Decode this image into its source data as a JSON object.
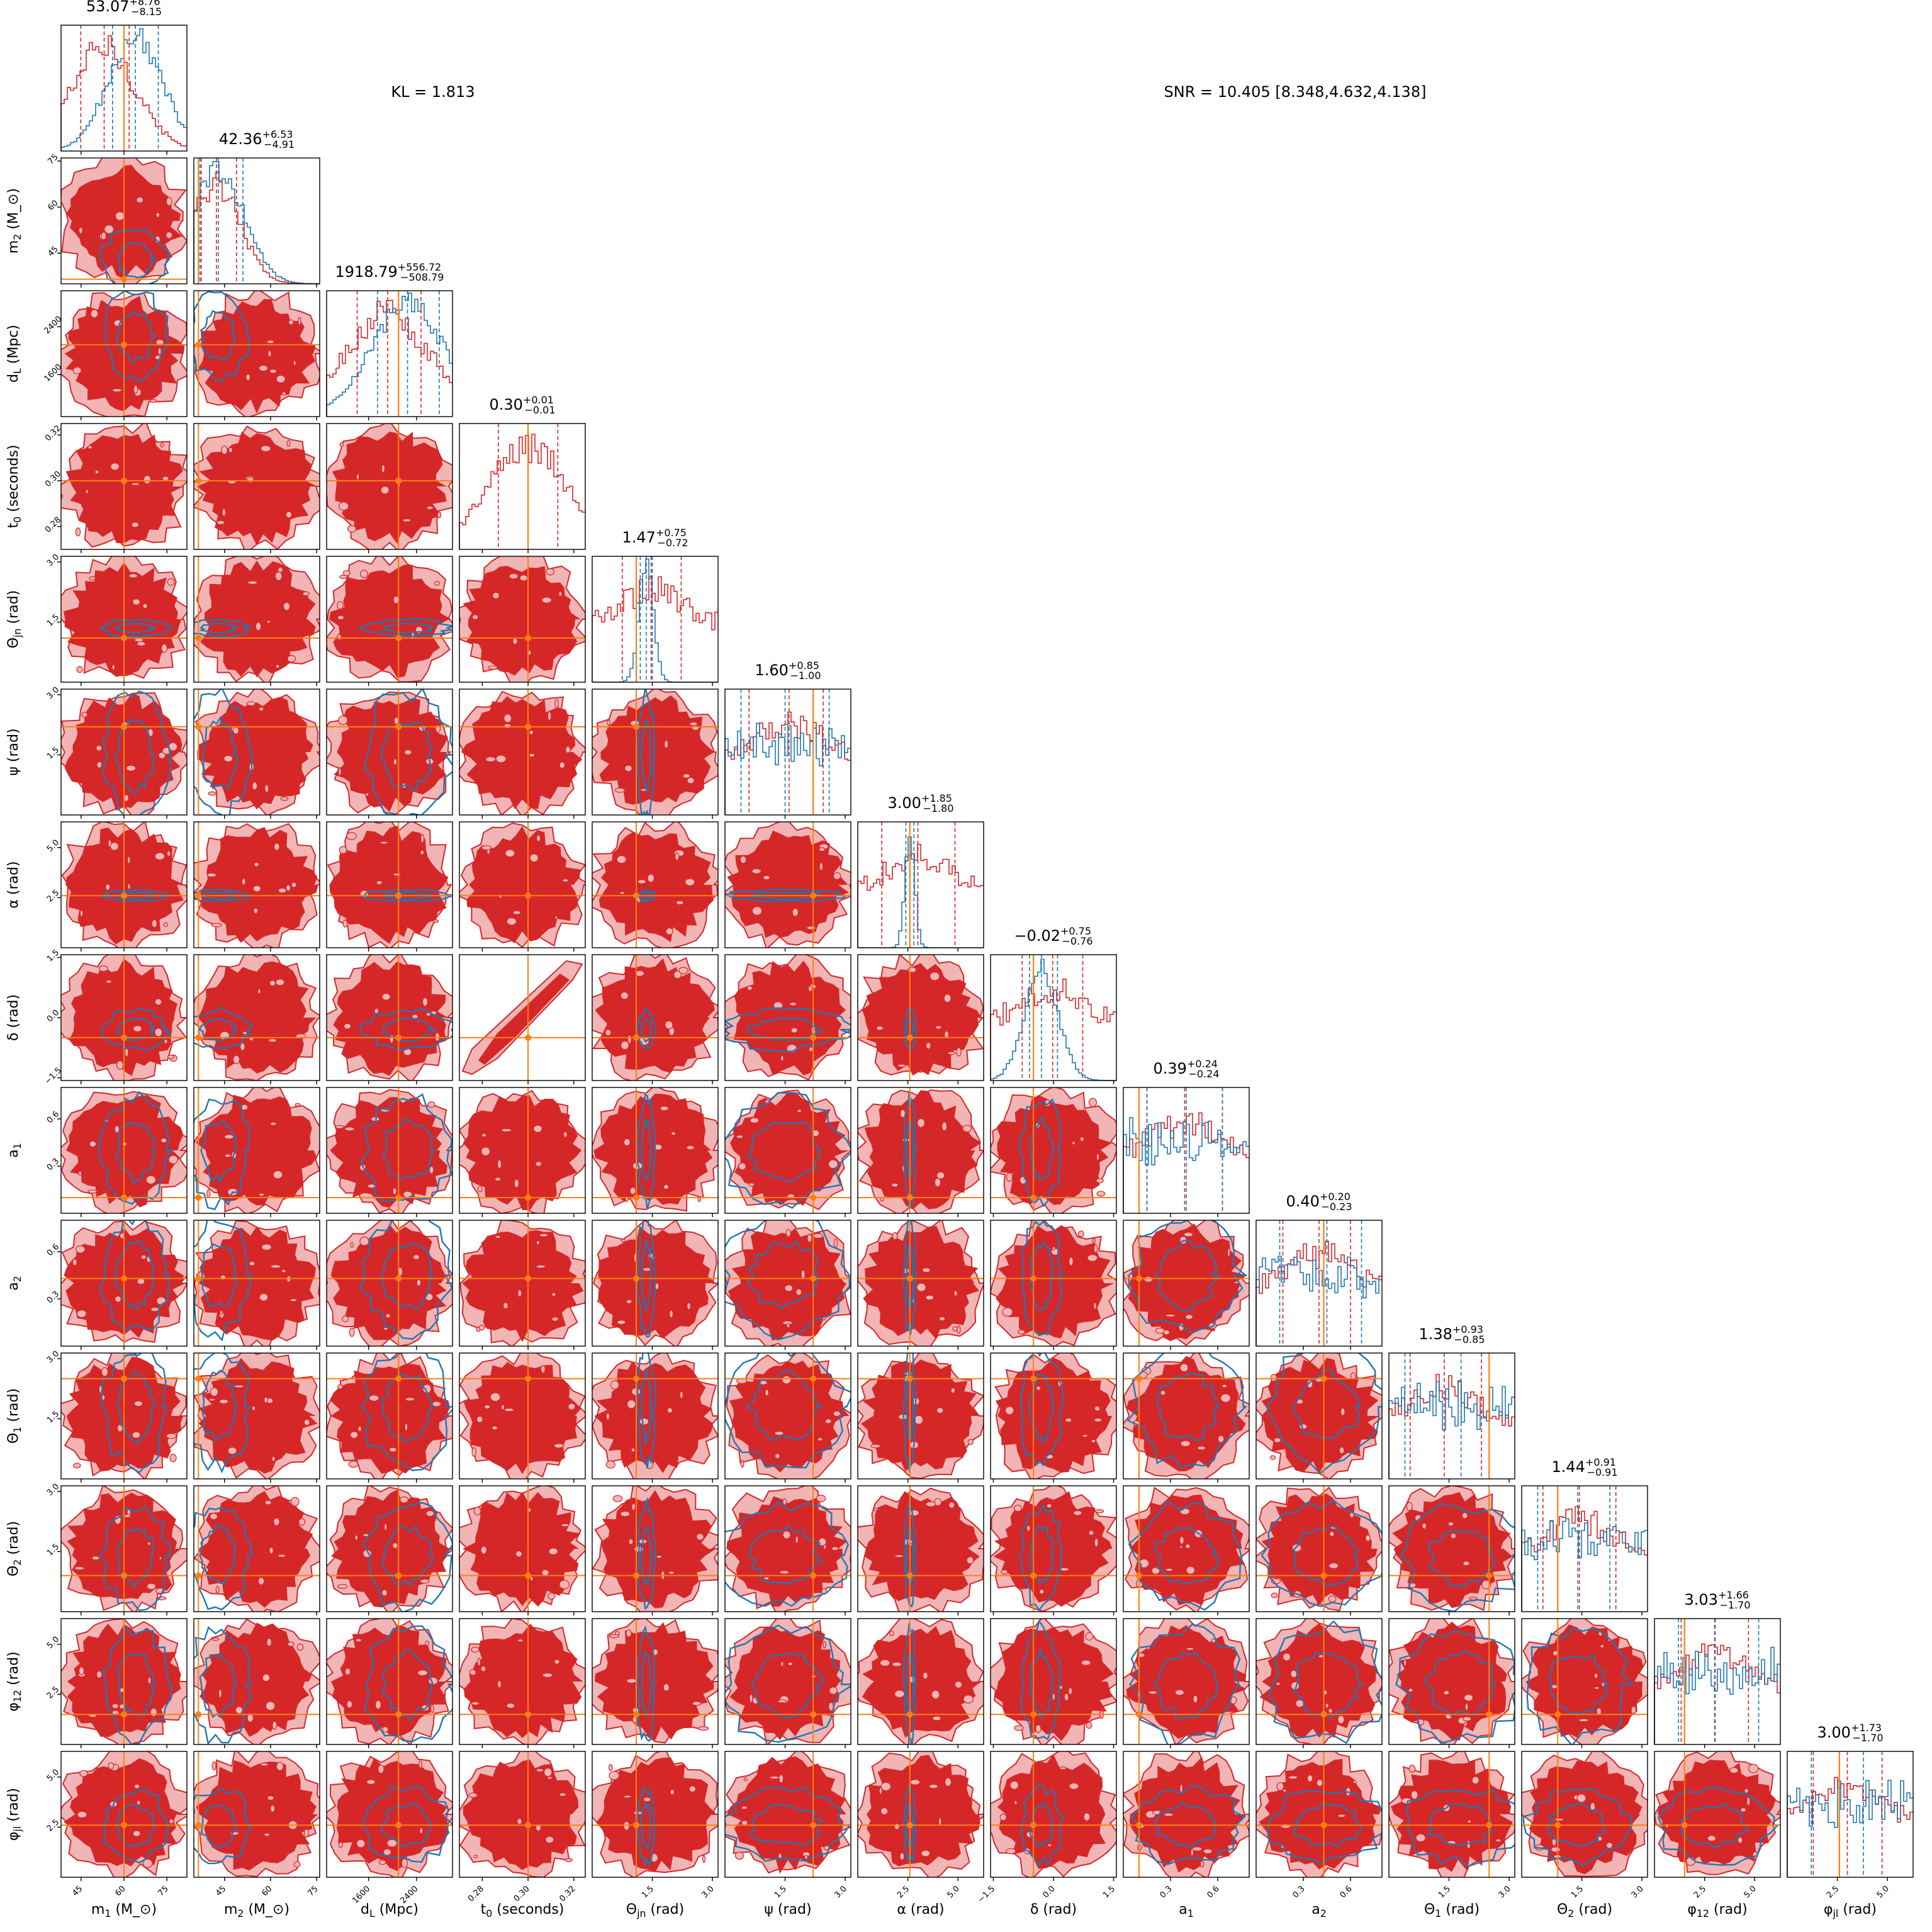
{
  "figure": {
    "kl_label": "KL = 1.813",
    "snr_label": "SNR = 10.405 [8.348,4.632,4.138]"
  },
  "colors": {
    "sample_set_a": "#d62728",
    "sample_set_a_fill_light": "#f2b5b5",
    "sample_set_b": "#1f77b4",
    "truth": "#ff7f0e",
    "panel_border": "#000000"
  },
  "chart_data": {
    "type": "corner",
    "grid": false,
    "legend": "none",
    "parameters": [
      {
        "key": "m1",
        "axis_label": "m_1 (M_⊙)",
        "title": {
          "median": "53.07",
          "plus": "+8.76",
          "minus": "−8.15"
        },
        "range": [
          38,
          82
        ],
        "ticks": [
          45,
          60,
          75
        ],
        "tick_labels": [
          "45",
          "60",
          "75"
        ],
        "truth": 60,
        "quantiles_a": [
          44.9,
          53.07,
          61.8
        ],
        "quantiles_b": [
          56,
          64,
          72
        ]
      },
      {
        "key": "m2",
        "axis_label": "m_2 (M_⊙)",
        "title": {
          "median": "42.36",
          "plus": "+6.53",
          "minus": "−4.91"
        },
        "range": [
          35,
          76
        ],
        "ticks": [
          45,
          60,
          75
        ],
        "tick_labels": [
          "45",
          "60",
          "75"
        ],
        "truth": 36.5,
        "quantiles_a": [
          37.4,
          42.36,
          48.9
        ],
        "quantiles_b": [
          37,
          43,
          51
        ]
      },
      {
        "key": "dL",
        "axis_label": "d_L (Mpc)",
        "title": {
          "median": "1918.79",
          "plus": "+556.72",
          "minus": "−508.79"
        },
        "range": [
          900,
          3000
        ],
        "ticks": [
          1600,
          2400
        ],
        "tick_labels": [
          "1600",
          "2400"
        ],
        "truth": 2100,
        "quantiles_a": [
          1410,
          1918.79,
          2475.5
        ],
        "quantiles_b": [
          1750,
          2250,
          2780
        ]
      },
      {
        "key": "t0",
        "axis_label": "t_0 (seconds)",
        "title": {
          "median": "0.30",
          "plus": "+0.01",
          "minus": "−0.01"
        },
        "range": [
          0.27,
          0.325
        ],
        "ticks": [
          0.28,
          0.3,
          0.32
        ],
        "tick_labels": [
          "0.28",
          "0.30",
          "0.32"
        ],
        "truth": 0.3,
        "quantiles_a": [
          0.287,
          0.3,
          0.313
        ],
        "quantiles_b": null
      },
      {
        "key": "theta_jn",
        "axis_label": "Θ_jn (rad)",
        "title": {
          "median": "1.47",
          "plus": "+0.75",
          "minus": "−0.72"
        },
        "range": [
          0,
          3.14
        ],
        "ticks": [
          1.5,
          3.0
        ],
        "tick_labels": [
          "1.5",
          "3.0"
        ],
        "truth": 1.1,
        "quantiles_a": [
          0.75,
          1.47,
          2.22
        ],
        "quantiles_b": [
          1.2,
          1.35,
          1.5
        ]
      },
      {
        "key": "psi",
        "axis_label": "ψ (rad)",
        "title": {
          "median": "1.60",
          "plus": "+0.85",
          "minus": "−1.00"
        },
        "range": [
          0,
          3.14
        ],
        "ticks": [
          1.5,
          3.0
        ],
        "tick_labels": [
          "1.5",
          "3.0"
        ],
        "truth": 2.2,
        "quantiles_a": [
          0.6,
          1.6,
          2.45
        ],
        "quantiles_b": [
          0.4,
          1.5,
          2.6
        ]
      },
      {
        "key": "alpha",
        "axis_label": "α (rad)",
        "title": {
          "median": "3.00",
          "plus": "+1.85",
          "minus": "−1.80"
        },
        "range": [
          0,
          6.28
        ],
        "ticks": [
          2.5,
          5.0
        ],
        "tick_labels": [
          "2.5",
          "5.0"
        ],
        "truth": 2.6,
        "quantiles_a": [
          1.2,
          3.0,
          4.85
        ],
        "quantiles_b": [
          2.4,
          2.6,
          2.8
        ]
      },
      {
        "key": "delta",
        "axis_label": "δ (rad)",
        "title": {
          "median": "−0.02",
          "plus": "+0.75",
          "minus": "−0.76"
        },
        "range": [
          -1.57,
          1.57
        ],
        "ticks": [
          -1.5,
          0.0,
          1.5
        ],
        "tick_labels": [
          "−1.5",
          "0.0",
          "1.5"
        ],
        "truth": -0.5,
        "quantiles_a": [
          -0.78,
          -0.02,
          0.73
        ],
        "quantiles_b": [
          -0.6,
          -0.3,
          0.1
        ]
      },
      {
        "key": "a1",
        "axis_label": "a_1",
        "title": {
          "median": "0.39",
          "plus": "+0.24",
          "minus": "−0.24"
        },
        "range": [
          0,
          0.8
        ],
        "ticks": [
          0.3,
          0.6
        ],
        "tick_labels": [
          "0.3",
          "0.6"
        ],
        "truth": 0.1,
        "quantiles_a": [
          0.15,
          0.39,
          0.63
        ],
        "quantiles_b": [
          0.15,
          0.4,
          0.63
        ]
      },
      {
        "key": "a2",
        "axis_label": "a_2",
        "title": {
          "median": "0.40",
          "plus": "+0.20",
          "minus": "−0.23"
        },
        "range": [
          0,
          0.8
        ],
        "ticks": [
          0.3,
          0.6
        ],
        "tick_labels": [
          "0.3",
          "0.6"
        ],
        "truth": 0.43,
        "quantiles_a": [
          0.17,
          0.4,
          0.6
        ],
        "quantiles_b": [
          0.15,
          0.45,
          0.67
        ]
      },
      {
        "key": "theta1",
        "axis_label": "Θ_1 (rad)",
        "title": {
          "median": "1.38",
          "plus": "+0.93",
          "minus": "−0.85"
        },
        "range": [
          0,
          3.14
        ],
        "ticks": [
          1.5,
          3.0
        ],
        "tick_labels": [
          "1.5",
          "3.0"
        ],
        "truth": 2.5,
        "quantiles_a": [
          0.53,
          1.38,
          2.31
        ],
        "quantiles_b": [
          0.4,
          1.8,
          2.5
        ]
      },
      {
        "key": "theta2",
        "axis_label": "Θ_2 (rad)",
        "title": {
          "median": "1.44",
          "plus": "+0.91",
          "minus": "−0.91"
        },
        "range": [
          0,
          3.14
        ],
        "ticks": [
          1.5,
          3.0
        ],
        "tick_labels": [
          "1.5",
          "3.0"
        ],
        "truth": 0.9,
        "quantiles_a": [
          0.53,
          1.44,
          2.35
        ],
        "quantiles_b": [
          0.4,
          1.4,
          2.2
        ]
      },
      {
        "key": "phi12",
        "axis_label": "φ_12 (rad)",
        "title": {
          "median": "3.03",
          "plus": "+1.66",
          "minus": "−1.70"
        },
        "range": [
          0,
          6.28
        ],
        "ticks": [
          2.5,
          5.0
        ],
        "tick_labels": [
          "2.5",
          "5.0"
        ],
        "truth": 1.5,
        "quantiles_a": [
          1.33,
          3.03,
          4.69
        ],
        "quantiles_b": [
          1.2,
          3.0,
          5.2
        ]
      },
      {
        "key": "phi_jl",
        "axis_label": "φ_jl (rad)",
        "title": {
          "median": "3.00",
          "plus": "+1.73",
          "minus": "−1.70"
        },
        "range": [
          0,
          6.28
        ],
        "ticks": [
          2.5,
          5.0
        ],
        "tick_labels": [
          "2.5",
          "5.0"
        ],
        "truth": 2.6,
        "quantiles_a": [
          1.3,
          3.0,
          4.73
        ],
        "quantiles_b": [
          1.2,
          2.6,
          3.8
        ]
      }
    ]
  }
}
